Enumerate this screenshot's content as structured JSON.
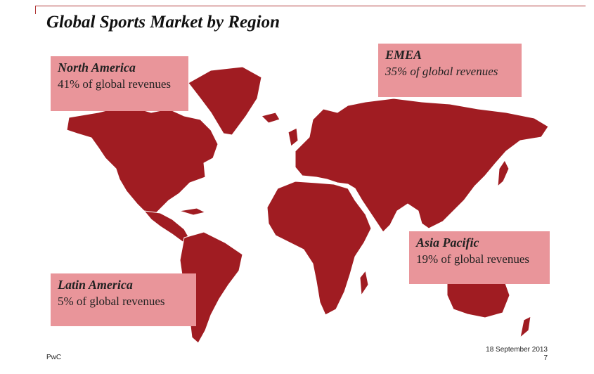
{
  "slide": {
    "title": "Global Sports Market by Region",
    "footer_left": "PwC",
    "footer_date": "18 September 2013",
    "page_number": "7"
  },
  "regions": {
    "north_america": {
      "name": "North America",
      "share": "41% of global revenues"
    },
    "emea": {
      "name": "EMEA",
      "share": "35% of global revenues"
    },
    "asia_pacific": {
      "name": "Asia Pacific",
      "share": "19% of global revenues"
    },
    "latin_america": {
      "name": "Latin America",
      "share": "5% of global revenues"
    }
  },
  "colors": {
    "map_fill": "#a01c22",
    "map_border": "#ffffff",
    "callout_bg": "#e9959a",
    "rule": "#b23a3a"
  }
}
